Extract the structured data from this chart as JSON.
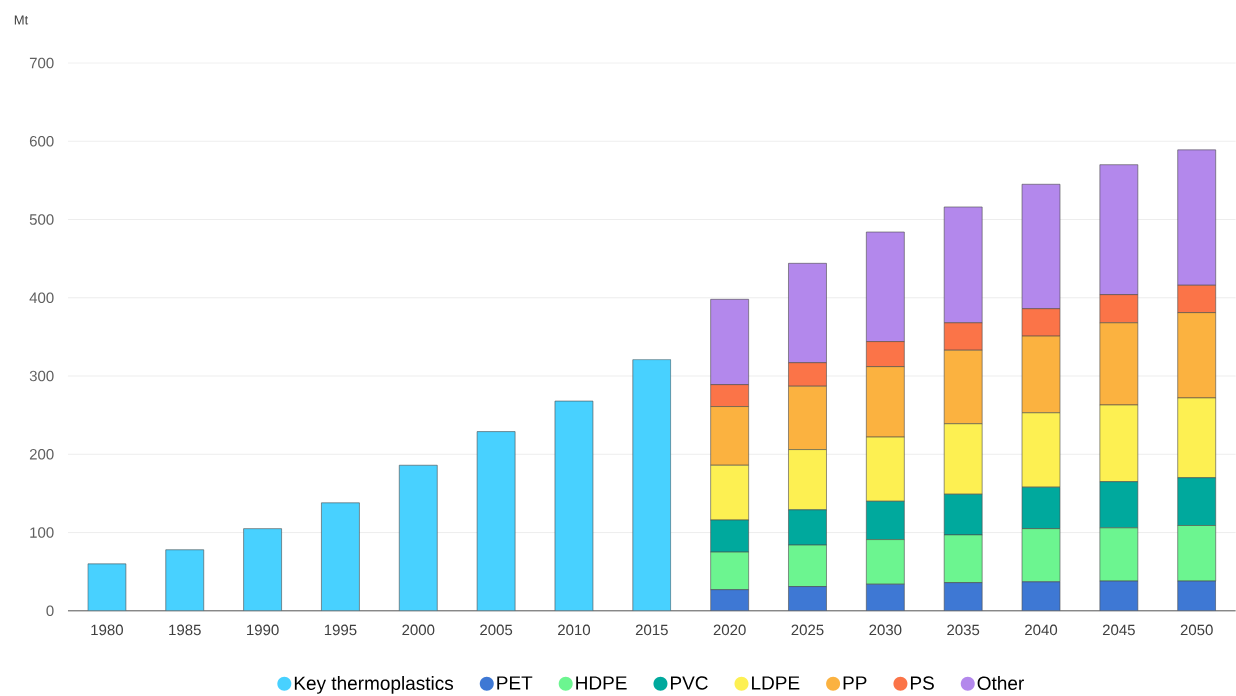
{
  "chart_data": {
    "type": "bar",
    "stacked": true,
    "ylabel": "Mt",
    "categories": [
      "1980",
      "1985",
      "1990",
      "1995",
      "2000",
      "2005",
      "2010",
      "2015",
      "2020",
      "2025",
      "2030",
      "2035",
      "2040",
      "2045",
      "2050"
    ],
    "series": [
      {
        "name": "Key thermoplastics",
        "color": "#48d1ff",
        "values": [
          60,
          78,
          105,
          138,
          186,
          229,
          268,
          321,
          null,
          null,
          null,
          null,
          null,
          null,
          null
        ]
      },
      {
        "name": "PET",
        "color": "#3e78d4",
        "values": [
          null,
          null,
          null,
          null,
          null,
          null,
          null,
          null,
          27,
          31,
          34,
          36,
          37,
          38,
          38
        ]
      },
      {
        "name": "HDPE",
        "color": "#6cf590",
        "values": [
          null,
          null,
          null,
          null,
          null,
          null,
          null,
          null,
          48,
          53,
          57,
          61,
          68,
          68,
          71
        ]
      },
      {
        "name": "PVC",
        "color": "#00a99d",
        "values": [
          null,
          null,
          null,
          null,
          null,
          null,
          null,
          null,
          41,
          45,
          49,
          52,
          53,
          59,
          61
        ]
      },
      {
        "name": "LDPE",
        "color": "#fdf052",
        "values": [
          null,
          null,
          null,
          null,
          null,
          null,
          null,
          null,
          70,
          77,
          82,
          90,
          95,
          98,
          102
        ]
      },
      {
        "name": "PP",
        "color": "#fbb240",
        "values": [
          null,
          null,
          null,
          null,
          null,
          null,
          null,
          null,
          75,
          81,
          90,
          94,
          98,
          105,
          109
        ]
      },
      {
        "name": "PS",
        "color": "#fb7448",
        "values": [
          null,
          null,
          null,
          null,
          null,
          null,
          null,
          null,
          28,
          30,
          32,
          35,
          35,
          36,
          35
        ]
      },
      {
        "name": "Other",
        "color": "#b388ec",
        "values": [
          null,
          null,
          null,
          null,
          null,
          null,
          null,
          null,
          109,
          127,
          140,
          148,
          159,
          166,
          173
        ]
      }
    ],
    "ylim": [
      0,
      700
    ],
    "yticks": [
      0,
      100,
      200,
      300,
      400,
      500,
      600,
      700
    ],
    "grid": "y",
    "legend": "bottom"
  }
}
